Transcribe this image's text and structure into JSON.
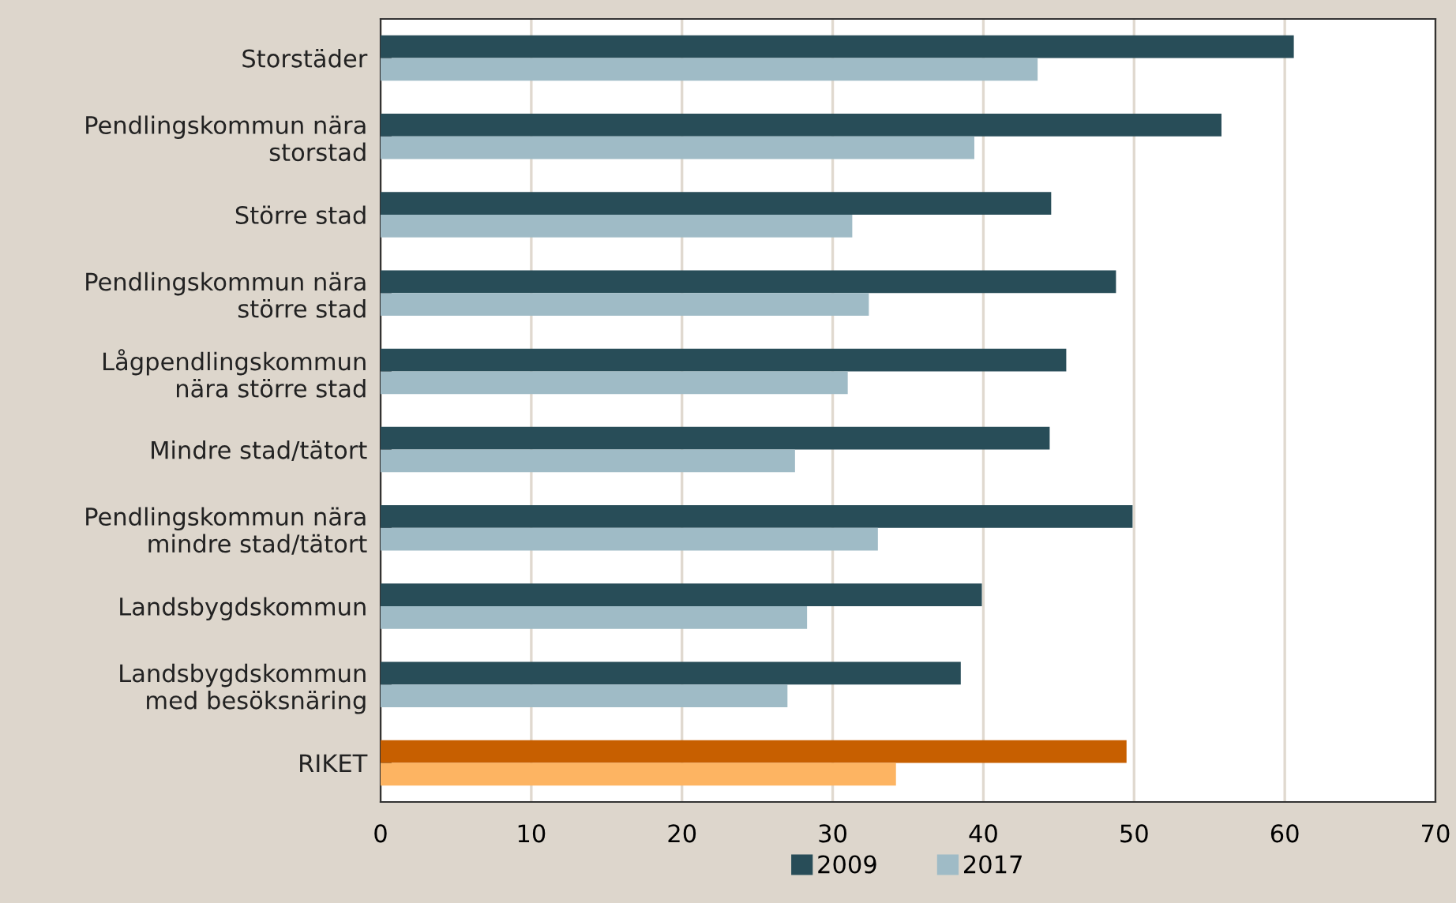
{
  "chart_data": {
    "type": "bar",
    "orientation": "horizontal",
    "categories": [
      "Storstäder",
      "Pendlingskommun nära\nstorstad",
      "Större stad",
      "Pendlingskommun nära\nstörre stad",
      "Lågpendlingskommun\nnära större stad",
      "Mindre stad/tätort",
      "Pendlingskommun nära\nmindre stad/tätort",
      "Landsbygdskommun",
      "Landsbygdskommun\nmed besöksnäring",
      "RIKET"
    ],
    "series": [
      {
        "name": "2009",
        "color": "#284d58",
        "colors": [
          "#284d58",
          "#284d58",
          "#284d58",
          "#284d58",
          "#284d58",
          "#284d58",
          "#284d58",
          "#284d58",
          "#284d58",
          "#c75f00"
        ],
        "values": [
          60.6,
          55.8,
          44.5,
          48.8,
          45.5,
          44.4,
          49.9,
          39.9,
          38.5,
          49.5
        ]
      },
      {
        "name": "2017",
        "color": "#9fbbc6",
        "colors": [
          "#9fbbc6",
          "#9fbbc6",
          "#9fbbc6",
          "#9fbbc6",
          "#9fbbc6",
          "#9fbbc6",
          "#9fbbc6",
          "#9fbbc6",
          "#9fbbc6",
          "#fdb462"
        ],
        "values": [
          43.6,
          39.4,
          31.3,
          32.4,
          31.0,
          27.5,
          33.0,
          28.3,
          27.0,
          34.2
        ]
      }
    ],
    "xlim": [
      0,
      70
    ],
    "xticks": [
      0,
      10,
      20,
      30,
      40,
      50,
      60,
      70
    ],
    "grid": "x",
    "legend": "bottom"
  }
}
